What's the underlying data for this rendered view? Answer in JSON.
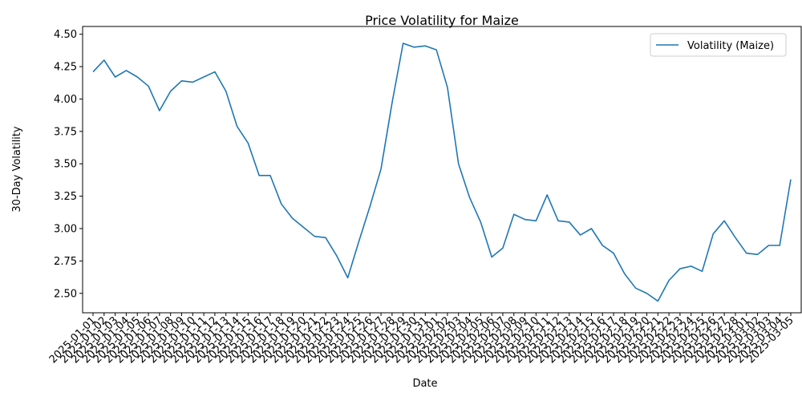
{
  "chart_data": {
    "type": "line",
    "title": "Price Volatility for Maize",
    "xlabel": "Date",
    "ylabel": "30-Day Volatility",
    "ylim": [
      2.35,
      4.56
    ],
    "yticks": [
      2.5,
      2.75,
      3.0,
      3.25,
      3.5,
      3.75,
      4.0,
      4.25,
      4.5
    ],
    "yticklabels": [
      "2.50",
      "2.75",
      "3.00",
      "3.25",
      "3.50",
      "3.75",
      "4.00",
      "4.25",
      "4.50"
    ],
    "grid": false,
    "legend_position": "top-right",
    "x": [
      "2025-01-01",
      "2025-01-02",
      "2025-01-03",
      "2025-01-04",
      "2025-01-05",
      "2025-01-06",
      "2025-01-07",
      "2025-01-08",
      "2025-01-09",
      "2025-01-10",
      "2025-01-11",
      "2025-01-12",
      "2025-01-13",
      "2025-01-14",
      "2025-01-15",
      "2025-01-16",
      "2025-01-17",
      "2025-01-18",
      "2025-01-19",
      "2025-01-20",
      "2025-01-21",
      "2025-01-22",
      "2025-01-23",
      "2025-01-24",
      "2025-01-25",
      "2025-01-26",
      "2025-01-27",
      "2025-01-28",
      "2025-01-29",
      "2025-01-30",
      "2025-01-31",
      "2025-02-01",
      "2025-02-02",
      "2025-02-03",
      "2025-02-04",
      "2025-02-05",
      "2025-02-06",
      "2025-02-07",
      "2025-02-08",
      "2025-02-09",
      "2025-02-10",
      "2025-02-11",
      "2025-02-12",
      "2025-02-13",
      "2025-02-14",
      "2025-02-15",
      "2025-02-16",
      "2025-02-17",
      "2025-02-18",
      "2025-02-19",
      "2025-02-20",
      "2025-02-21",
      "2025-02-22",
      "2025-02-23",
      "2025-02-24",
      "2025-02-25",
      "2025-02-26",
      "2025-02-27",
      "2025-02-28",
      "2025-03-01",
      "2025-03-02",
      "2025-03-03",
      "2025-03-04",
      "2025-03-05"
    ],
    "series": [
      {
        "name": "Volatility (Maize)",
        "color": "#1f77b4",
        "values": [
          4.21,
          4.3,
          4.17,
          4.22,
          4.17,
          4.1,
          3.91,
          4.06,
          4.14,
          4.13,
          4.17,
          4.21,
          4.06,
          3.79,
          3.66,
          3.41,
          3.41,
          3.19,
          3.08,
          3.01,
          2.94,
          2.93,
          2.79,
          2.62,
          2.9,
          3.17,
          3.46,
          3.97,
          4.43,
          4.4,
          4.41,
          4.38,
          4.09,
          3.5,
          3.24,
          3.05,
          2.78,
          2.85,
          3.11,
          3.07,
          3.06,
          3.26,
          3.06,
          3.05,
          2.95,
          3.0,
          2.87,
          2.81,
          2.65,
          2.54,
          2.5,
          2.44,
          2.6,
          2.69,
          2.71,
          2.67,
          2.96,
          3.06,
          2.93,
          2.81,
          2.8,
          2.87,
          2.87,
          3.38
        ]
      }
    ]
  }
}
